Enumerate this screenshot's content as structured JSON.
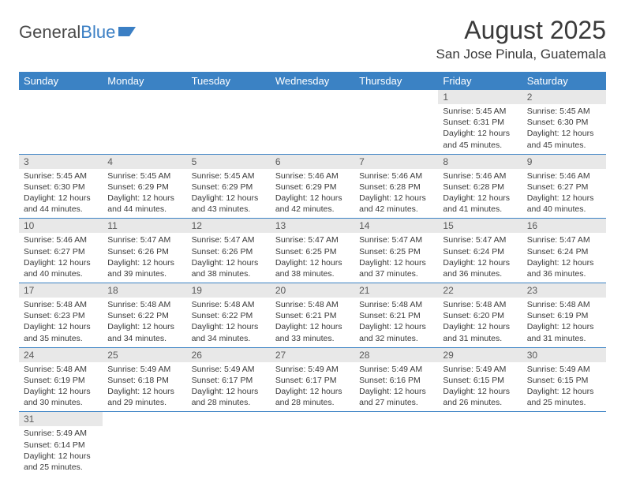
{
  "logo": {
    "part1": "General",
    "part2": "Blue"
  },
  "title": "August 2025",
  "location": "San Jose Pinula, Guatemala",
  "colors": {
    "header_bg": "#3b82c4",
    "header_text": "#ffffff",
    "daynum_bg": "#e8e8e8",
    "text": "#3a3a3a",
    "border": "#3b82c4"
  },
  "fonts": {
    "title_size": 32,
    "location_size": 17,
    "dayhead_size": 13,
    "body_size": 10.5
  },
  "day_headers": [
    "Sunday",
    "Monday",
    "Tuesday",
    "Wednesday",
    "Thursday",
    "Friday",
    "Saturday"
  ],
  "weeks": [
    [
      null,
      null,
      null,
      null,
      null,
      {
        "n": "1",
        "sr": "5:45 AM",
        "ss": "6:31 PM",
        "dl": "12 hours and 45 minutes."
      },
      {
        "n": "2",
        "sr": "5:45 AM",
        "ss": "6:30 PM",
        "dl": "12 hours and 45 minutes."
      }
    ],
    [
      {
        "n": "3",
        "sr": "5:45 AM",
        "ss": "6:30 PM",
        "dl": "12 hours and 44 minutes."
      },
      {
        "n": "4",
        "sr": "5:45 AM",
        "ss": "6:29 PM",
        "dl": "12 hours and 44 minutes."
      },
      {
        "n": "5",
        "sr": "5:45 AM",
        "ss": "6:29 PM",
        "dl": "12 hours and 43 minutes."
      },
      {
        "n": "6",
        "sr": "5:46 AM",
        "ss": "6:29 PM",
        "dl": "12 hours and 42 minutes."
      },
      {
        "n": "7",
        "sr": "5:46 AM",
        "ss": "6:28 PM",
        "dl": "12 hours and 42 minutes."
      },
      {
        "n": "8",
        "sr": "5:46 AM",
        "ss": "6:28 PM",
        "dl": "12 hours and 41 minutes."
      },
      {
        "n": "9",
        "sr": "5:46 AM",
        "ss": "6:27 PM",
        "dl": "12 hours and 40 minutes."
      }
    ],
    [
      {
        "n": "10",
        "sr": "5:46 AM",
        "ss": "6:27 PM",
        "dl": "12 hours and 40 minutes."
      },
      {
        "n": "11",
        "sr": "5:47 AM",
        "ss": "6:26 PM",
        "dl": "12 hours and 39 minutes."
      },
      {
        "n": "12",
        "sr": "5:47 AM",
        "ss": "6:26 PM",
        "dl": "12 hours and 38 minutes."
      },
      {
        "n": "13",
        "sr": "5:47 AM",
        "ss": "6:25 PM",
        "dl": "12 hours and 38 minutes."
      },
      {
        "n": "14",
        "sr": "5:47 AM",
        "ss": "6:25 PM",
        "dl": "12 hours and 37 minutes."
      },
      {
        "n": "15",
        "sr": "5:47 AM",
        "ss": "6:24 PM",
        "dl": "12 hours and 36 minutes."
      },
      {
        "n": "16",
        "sr": "5:47 AM",
        "ss": "6:24 PM",
        "dl": "12 hours and 36 minutes."
      }
    ],
    [
      {
        "n": "17",
        "sr": "5:48 AM",
        "ss": "6:23 PM",
        "dl": "12 hours and 35 minutes."
      },
      {
        "n": "18",
        "sr": "5:48 AM",
        "ss": "6:22 PM",
        "dl": "12 hours and 34 minutes."
      },
      {
        "n": "19",
        "sr": "5:48 AM",
        "ss": "6:22 PM",
        "dl": "12 hours and 34 minutes."
      },
      {
        "n": "20",
        "sr": "5:48 AM",
        "ss": "6:21 PM",
        "dl": "12 hours and 33 minutes."
      },
      {
        "n": "21",
        "sr": "5:48 AM",
        "ss": "6:21 PM",
        "dl": "12 hours and 32 minutes."
      },
      {
        "n": "22",
        "sr": "5:48 AM",
        "ss": "6:20 PM",
        "dl": "12 hours and 31 minutes."
      },
      {
        "n": "23",
        "sr": "5:48 AM",
        "ss": "6:19 PM",
        "dl": "12 hours and 31 minutes."
      }
    ],
    [
      {
        "n": "24",
        "sr": "5:48 AM",
        "ss": "6:19 PM",
        "dl": "12 hours and 30 minutes."
      },
      {
        "n": "25",
        "sr": "5:49 AM",
        "ss": "6:18 PM",
        "dl": "12 hours and 29 minutes."
      },
      {
        "n": "26",
        "sr": "5:49 AM",
        "ss": "6:17 PM",
        "dl": "12 hours and 28 minutes."
      },
      {
        "n": "27",
        "sr": "5:49 AM",
        "ss": "6:17 PM",
        "dl": "12 hours and 28 minutes."
      },
      {
        "n": "28",
        "sr": "5:49 AM",
        "ss": "6:16 PM",
        "dl": "12 hours and 27 minutes."
      },
      {
        "n": "29",
        "sr": "5:49 AM",
        "ss": "6:15 PM",
        "dl": "12 hours and 26 minutes."
      },
      {
        "n": "30",
        "sr": "5:49 AM",
        "ss": "6:15 PM",
        "dl": "12 hours and 25 minutes."
      }
    ],
    [
      {
        "n": "31",
        "sr": "5:49 AM",
        "ss": "6:14 PM",
        "dl": "12 hours and 25 minutes."
      },
      null,
      null,
      null,
      null,
      null,
      null
    ]
  ],
  "labels": {
    "sunrise": "Sunrise: ",
    "sunset": "Sunset: ",
    "daylight": "Daylight: "
  }
}
